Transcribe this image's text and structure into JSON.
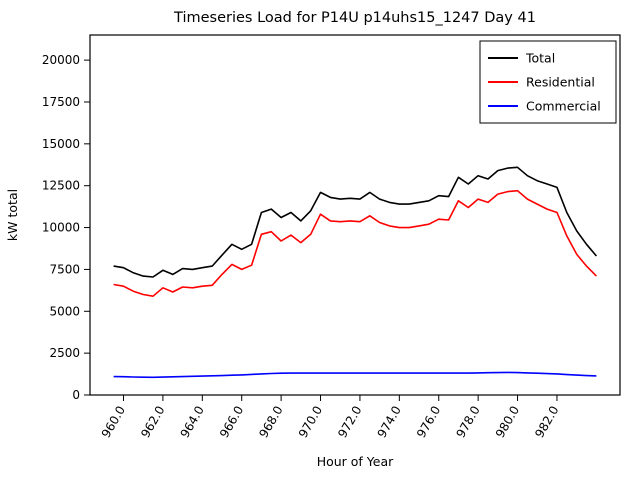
{
  "figure": {
    "title": "Timeseries Load for P14U p14uhs15_1247  Day 41",
    "xlabel": "Hour of Year",
    "ylabel": "kW total"
  },
  "chart_data": {
    "type": "line",
    "title": "Timeseries Load for P14U p14uhs15_1247  Day 41",
    "xlabel": "Hour of Year",
    "ylabel": "kW total",
    "xlim": [
      958.3,
      985.2
    ],
    "ylim": [
      0,
      21500
    ],
    "x_ticks": [
      960.0,
      962.0,
      964.0,
      966.0,
      968.0,
      970.0,
      972.0,
      974.0,
      976.0,
      978.0,
      980.0,
      982.0
    ],
    "x_tick_labels": [
      "960.0",
      "962.0",
      "964.0",
      "966.0",
      "968.0",
      "970.0",
      "972.0",
      "974.0",
      "976.0",
      "978.0",
      "980.0",
      "982.0"
    ],
    "y_ticks": [
      0,
      2500,
      5000,
      7500,
      10000,
      12500,
      15000,
      17500,
      20000
    ],
    "y_tick_labels": [
      "0",
      "2500",
      "5000",
      "7500",
      "10000",
      "12500",
      "15000",
      "17500",
      "20000"
    ],
    "grid": false,
    "legend_position": "upper right",
    "x": [
      959.5,
      960.0,
      960.5,
      961.0,
      961.5,
      962.0,
      962.5,
      963.0,
      963.5,
      964.0,
      964.5,
      965.0,
      965.5,
      966.0,
      966.5,
      967.0,
      967.5,
      968.0,
      968.5,
      969.0,
      969.5,
      970.0,
      970.5,
      971.0,
      971.5,
      972.0,
      972.5,
      973.0,
      973.5,
      974.0,
      974.5,
      975.0,
      975.5,
      976.0,
      976.5,
      977.0,
      977.5,
      978.0,
      978.5,
      979.0,
      979.5,
      980.0,
      980.5,
      981.0,
      981.5,
      982.0,
      982.5,
      983.0,
      983.5,
      984.0
    ],
    "series": [
      {
        "name": "Total",
        "color": "#000000",
        "values": [
          7700,
          7600,
          7300,
          7100,
          7050,
          7450,
          7200,
          7550,
          7500,
          7600,
          7700,
          8350,
          9000,
          8700,
          9000,
          10900,
          11100,
          10600,
          10900,
          10400,
          11000,
          12100,
          11800,
          11700,
          11750,
          11700,
          12100,
          11700,
          11500,
          11400,
          11400,
          11500,
          11600,
          11900,
          11850,
          13000,
          12600,
          13100,
          12900,
          13400,
          13550,
          13600,
          13100,
          12800,
          12600,
          12400,
          10900,
          9800,
          9000,
          8300
        ]
      },
      {
        "name": "Residential",
        "color": "#ff0000",
        "values": [
          6600,
          6500,
          6200,
          6000,
          5900,
          6400,
          6150,
          6450,
          6400,
          6500,
          6550,
          7200,
          7800,
          7500,
          7750,
          9600,
          9750,
          9200,
          9550,
          9100,
          9600,
          10800,
          10400,
          10350,
          10400,
          10350,
          10700,
          10300,
          10100,
          10000,
          10000,
          10100,
          10200,
          10500,
          10450,
          11600,
          11200,
          11700,
          11500,
          12000,
          12150,
          12200,
          11700,
          11400,
          11100,
          10900,
          9500,
          8400,
          7700,
          7100
        ]
      },
      {
        "name": "Commercial",
        "color": "#0000ff",
        "values": [
          1100,
          1090,
          1075,
          1065,
          1060,
          1070,
          1085,
          1100,
          1115,
          1130,
          1145,
          1160,
          1180,
          1200,
          1230,
          1260,
          1285,
          1300,
          1305,
          1305,
          1305,
          1305,
          1305,
          1305,
          1305,
          1310,
          1310,
          1310,
          1310,
          1310,
          1310,
          1305,
          1305,
          1305,
          1305,
          1310,
          1305,
          1320,
          1330,
          1340,
          1350,
          1340,
          1320,
          1300,
          1280,
          1260,
          1220,
          1190,
          1160,
          1140
        ]
      }
    ]
  }
}
